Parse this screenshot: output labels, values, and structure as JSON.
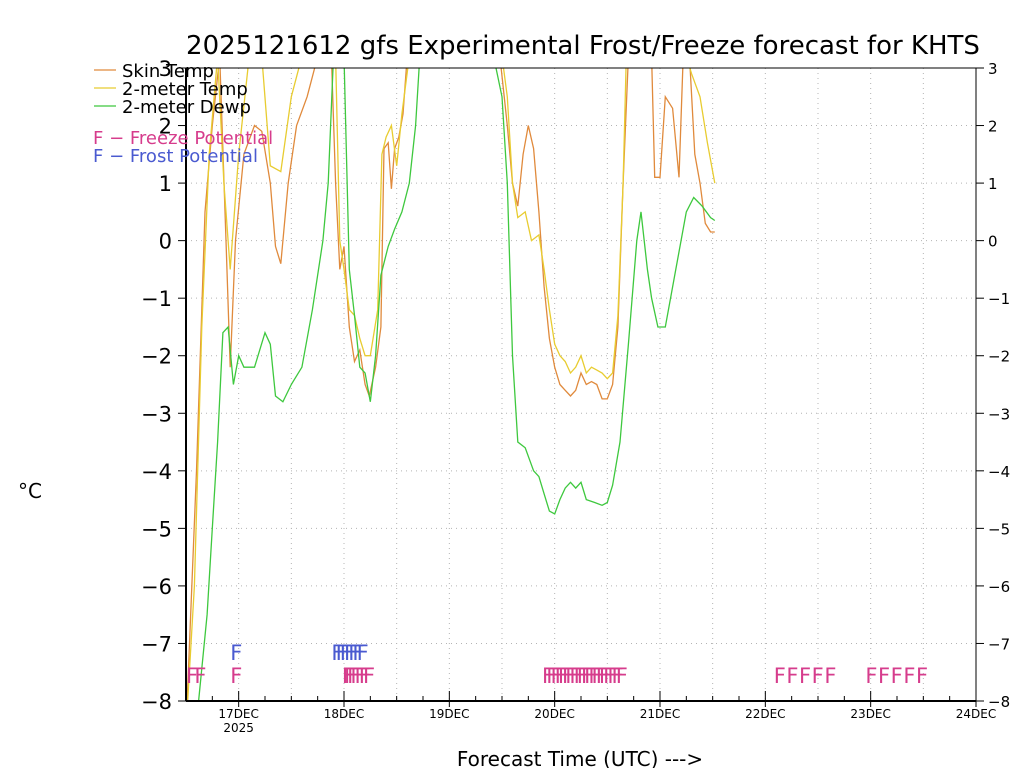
{
  "chart_data": {
    "type": "line",
    "title": "2025121612 gfs Experimental Frost/Freeze forecast for KHTS",
    "xlabel": "Forecast Time (UTC) --->",
    "ylabel": "°C",
    "ylim": [
      -8,
      3
    ],
    "xlim_days": [
      16.5,
      24
    ],
    "grid": true,
    "legend_position": "top-left",
    "y_ticks": [
      "3",
      "2",
      "1",
      "0",
      "−1",
      "−2",
      "−3",
      "−4",
      "−5",
      "−6",
      "−7",
      "−8"
    ],
    "y_tick_values": [
      3,
      2,
      1,
      0,
      -1,
      -2,
      -3,
      -4,
      -5,
      -6,
      -7,
      -8
    ],
    "x_ticks": [
      {
        "label": "17DEC",
        "sublabel": "2025",
        "day": 17
      },
      {
        "label": "18DEC",
        "sublabel": "",
        "day": 18
      },
      {
        "label": "19DEC",
        "sublabel": "",
        "day": 19
      },
      {
        "label": "20DEC",
        "sublabel": "",
        "day": 20
      },
      {
        "label": "21DEC",
        "sublabel": "",
        "day": 21
      },
      {
        "label": "22DEC",
        "sublabel": "",
        "day": 22
      },
      {
        "label": "23DEC",
        "sublabel": "",
        "day": 23
      },
      {
        "label": "24DEC",
        "sublabel": "",
        "day": 24
      }
    ],
    "series": [
      {
        "name": "Skin Temp",
        "color": "#e08a3c",
        "points": [
          [
            16.5,
            -8.5
          ],
          [
            16.6,
            -4.0
          ],
          [
            16.68,
            0.5
          ],
          [
            16.75,
            2.0
          ],
          [
            16.82,
            3.2
          ],
          [
            16.88,
            0.0
          ],
          [
            16.92,
            -2.2
          ],
          [
            16.97,
            0.0
          ],
          [
            17.05,
            1.5
          ],
          [
            17.15,
            2.0
          ],
          [
            17.22,
            1.9
          ],
          [
            17.3,
            1.0
          ],
          [
            17.35,
            -0.1
          ],
          [
            17.4,
            -0.4
          ],
          [
            17.47,
            1.0
          ],
          [
            17.55,
            2.0
          ],
          [
            17.65,
            2.5
          ],
          [
            17.75,
            3.2
          ],
          [
            17.88,
            3.2
          ],
          [
            17.92,
            1.0
          ],
          [
            17.96,
            -0.5
          ],
          [
            18.0,
            -0.1
          ],
          [
            18.05,
            -1.5
          ],
          [
            18.1,
            -2.1
          ],
          [
            18.15,
            -1.9
          ],
          [
            18.2,
            -2.5
          ],
          [
            18.24,
            -2.7
          ],
          [
            18.3,
            -2.2
          ],
          [
            18.35,
            -1.5
          ],
          [
            18.38,
            1.6
          ],
          [
            18.42,
            1.7
          ],
          [
            18.45,
            0.9
          ],
          [
            18.48,
            1.6
          ],
          [
            18.52,
            1.8
          ],
          [
            18.56,
            2.2
          ],
          [
            18.6,
            3.2
          ],
          [
            19.48,
            3.2
          ],
          [
            19.55,
            2.0
          ],
          [
            19.6,
            1.0
          ],
          [
            19.65,
            0.6
          ],
          [
            19.7,
            1.5
          ],
          [
            19.75,
            2.0
          ],
          [
            19.8,
            1.6
          ],
          [
            19.85,
            0.5
          ],
          [
            19.9,
            -0.8
          ],
          [
            19.95,
            -1.7
          ],
          [
            20.0,
            -2.2
          ],
          [
            20.05,
            -2.5
          ],
          [
            20.1,
            -2.6
          ],
          [
            20.15,
            -2.7
          ],
          [
            20.2,
            -2.6
          ],
          [
            20.25,
            -2.3
          ],
          [
            20.3,
            -2.5
          ],
          [
            20.35,
            -2.45
          ],
          [
            20.4,
            -2.5
          ],
          [
            20.45,
            -2.75
          ],
          [
            20.5,
            -2.75
          ],
          [
            20.55,
            -2.5
          ],
          [
            20.6,
            -1.5
          ],
          [
            20.65,
            1.0
          ],
          [
            20.7,
            3.2
          ],
          [
            20.92,
            3.2
          ],
          [
            20.95,
            1.1
          ],
          [
            21.0,
            1.1
          ],
          [
            21.05,
            2.5
          ],
          [
            21.12,
            2.3
          ],
          [
            21.18,
            1.1
          ],
          [
            21.22,
            3.2
          ],
          [
            21.28,
            3.2
          ],
          [
            21.33,
            1.5
          ],
          [
            21.38,
            1.0
          ],
          [
            21.43,
            0.3
          ],
          [
            21.48,
            0.15
          ],
          [
            21.52,
            0.15
          ]
        ]
      },
      {
        "name": "2-meter Temp",
        "color": "#e8cc30",
        "points": [
          [
            16.5,
            -8.5
          ],
          [
            16.58,
            -6.0
          ],
          [
            16.65,
            -1.5
          ],
          [
            16.72,
            1.5
          ],
          [
            16.8,
            3.2
          ],
          [
            16.86,
            1.0
          ],
          [
            16.92,
            -0.5
          ],
          [
            17.0,
            1.5
          ],
          [
            17.1,
            3.2
          ],
          [
            17.22,
            3.2
          ],
          [
            17.3,
            1.3
          ],
          [
            17.4,
            1.2
          ],
          [
            17.5,
            2.5
          ],
          [
            17.6,
            3.2
          ],
          [
            17.92,
            3.2
          ],
          [
            17.96,
            0.0
          ],
          [
            18.0,
            -0.5
          ],
          [
            18.05,
            -1.2
          ],
          [
            18.1,
            -1.3
          ],
          [
            18.15,
            -1.7
          ],
          [
            18.2,
            -2.0
          ],
          [
            18.25,
            -2.0
          ],
          [
            18.32,
            -1.2
          ],
          [
            18.36,
            1.5
          ],
          [
            18.4,
            1.8
          ],
          [
            18.45,
            2.0
          ],
          [
            18.5,
            1.3
          ],
          [
            18.55,
            2.2
          ],
          [
            18.62,
            3.2
          ],
          [
            19.5,
            3.2
          ],
          [
            19.55,
            2.5
          ],
          [
            19.6,
            1.0
          ],
          [
            19.65,
            0.4
          ],
          [
            19.72,
            0.5
          ],
          [
            19.78,
            0.0
          ],
          [
            19.85,
            0.1
          ],
          [
            19.9,
            -0.5
          ],
          [
            19.95,
            -1.2
          ],
          [
            20.0,
            -1.8
          ],
          [
            20.05,
            -2.0
          ],
          [
            20.1,
            -2.1
          ],
          [
            20.15,
            -2.3
          ],
          [
            20.2,
            -2.2
          ],
          [
            20.25,
            -2.0
          ],
          [
            20.3,
            -2.3
          ],
          [
            20.35,
            -2.2
          ],
          [
            20.4,
            -2.25
          ],
          [
            20.45,
            -2.3
          ],
          [
            20.5,
            -2.4
          ],
          [
            20.55,
            -2.3
          ],
          [
            20.6,
            -1.3
          ],
          [
            20.65,
            1.0
          ],
          [
            20.68,
            3.2
          ],
          [
            21.25,
            3.2
          ],
          [
            21.3,
            2.9
          ],
          [
            21.38,
            2.5
          ],
          [
            21.45,
            1.7
          ],
          [
            21.52,
            1.0
          ]
        ]
      },
      {
        "name": "2-meter Dewp",
        "color": "#3ec83e",
        "points": [
          [
            16.62,
            -8.0
          ],
          [
            16.7,
            -6.5
          ],
          [
            16.75,
            -5.0
          ],
          [
            16.8,
            -3.5
          ],
          [
            16.85,
            -1.6
          ],
          [
            16.9,
            -1.5
          ],
          [
            16.95,
            -2.5
          ],
          [
            17.0,
            -2.0
          ],
          [
            17.05,
            -2.2
          ],
          [
            17.15,
            -2.2
          ],
          [
            17.25,
            -1.6
          ],
          [
            17.3,
            -1.8
          ],
          [
            17.35,
            -2.7
          ],
          [
            17.42,
            -2.8
          ],
          [
            17.5,
            -2.5
          ],
          [
            17.6,
            -2.2
          ],
          [
            17.7,
            -1.2
          ],
          [
            17.8,
            0.0
          ],
          [
            17.85,
            1.0
          ],
          [
            17.9,
            3.2
          ],
          [
            18.0,
            3.2
          ],
          [
            18.05,
            -0.5
          ],
          [
            18.1,
            -1.3
          ],
          [
            18.15,
            -2.2
          ],
          [
            18.2,
            -2.3
          ],
          [
            18.25,
            -2.8
          ],
          [
            18.3,
            -2.0
          ],
          [
            18.35,
            -0.6
          ],
          [
            18.42,
            -0.1
          ],
          [
            18.48,
            0.2
          ],
          [
            18.55,
            0.5
          ],
          [
            18.62,
            1.0
          ],
          [
            18.68,
            2.0
          ],
          [
            18.72,
            3.2
          ],
          [
            19.42,
            3.2
          ],
          [
            19.5,
            2.5
          ],
          [
            19.55,
            1.0
          ],
          [
            19.6,
            -2.0
          ],
          [
            19.65,
            -3.5
          ],
          [
            19.72,
            -3.6
          ],
          [
            19.8,
            -4.0
          ],
          [
            19.85,
            -4.1
          ],
          [
            19.9,
            -4.4
          ],
          [
            19.95,
            -4.7
          ],
          [
            20.0,
            -4.75
          ],
          [
            20.05,
            -4.5
          ],
          [
            20.1,
            -4.3
          ],
          [
            20.15,
            -4.2
          ],
          [
            20.2,
            -4.3
          ],
          [
            20.25,
            -4.2
          ],
          [
            20.3,
            -4.5
          ],
          [
            20.38,
            -4.55
          ],
          [
            20.45,
            -4.6
          ],
          [
            20.5,
            -4.55
          ],
          [
            20.55,
            -4.25
          ],
          [
            20.62,
            -3.5
          ],
          [
            20.7,
            -1.8
          ],
          [
            20.78,
            0.0
          ],
          [
            20.82,
            0.5
          ],
          [
            20.88,
            -0.5
          ],
          [
            20.92,
            -1.0
          ],
          [
            20.98,
            -1.5
          ],
          [
            21.05,
            -1.5
          ],
          [
            21.15,
            -0.5
          ],
          [
            21.25,
            0.5
          ],
          [
            21.32,
            0.75
          ],
          [
            21.4,
            0.6
          ],
          [
            21.48,
            0.4
          ],
          [
            21.52,
            0.35
          ]
        ]
      }
    ],
    "legend": [
      {
        "label": "Skin Temp",
        "color": "#e08a3c"
      },
      {
        "label": "2-meter Temp",
        "color": "#e8cc30"
      },
      {
        "label": "2-meter Dewp",
        "color": "#3ec83e"
      }
    ],
    "potential_legend": [
      {
        "label": "F − Freeze Potential",
        "color": "#d63c8c"
      },
      {
        "label": "F − Frost Potential",
        "color": "#4a5ad0"
      }
    ],
    "markers": {
      "marker_text": "F",
      "freeze": {
        "color": "#d63c8c",
        "y": -7.55,
        "days": [
          16.5,
          16.58,
          16.92,
          17.98,
          18.0,
          18.03,
          18.06,
          18.1,
          18.14,
          18.18,
          19.88,
          19.92,
          19.96,
          20.0,
          20.03,
          20.07,
          20.1,
          20.14,
          20.18,
          20.21,
          20.25,
          20.28,
          20.32,
          20.35,
          20.39,
          20.42,
          20.46,
          20.5,
          20.54,
          20.58,
          22.08,
          22.2,
          22.32,
          22.44,
          22.56,
          22.95,
          23.07,
          23.19,
          23.31,
          23.43
        ]
      },
      "frost": {
        "color": "#4a5ad0",
        "y": -7.15,
        "days": [
          16.92,
          17.88,
          17.92,
          17.96,
          18.0,
          18.04,
          18.08,
          18.12
        ]
      }
    }
  }
}
